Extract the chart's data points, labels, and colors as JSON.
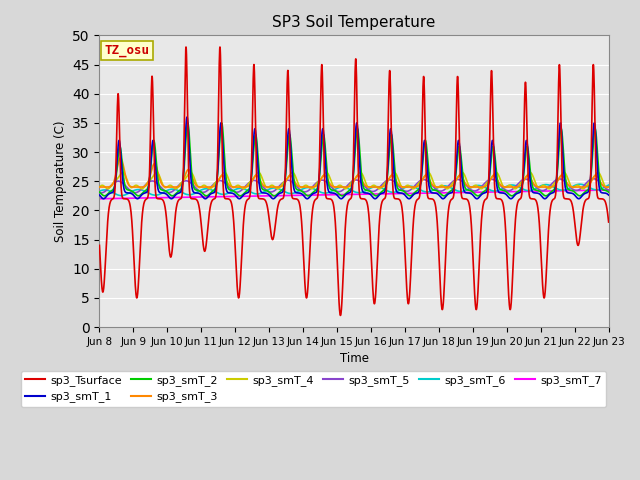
{
  "title": "SP3 Soil Temperature",
  "xlabel": "Time",
  "ylabel": "Soil Temperature (C)",
  "ylim": [
    0,
    50
  ],
  "yticks": [
    0,
    5,
    10,
    15,
    20,
    25,
    30,
    35,
    40,
    45,
    50
  ],
  "xtick_labels": [
    "Jun 8",
    "Jun 9",
    "Jun 10",
    "Jun 11",
    "Jun 12",
    "Jun 13",
    "Jun 14",
    "Jun 15",
    "Jun 16",
    "Jun 17",
    "Jun 18",
    "Jun 19",
    "Jun 20",
    "Jun 21",
    "Jun 22",
    "Jun 23"
  ],
  "fig_bg_color": "#d8d8d8",
  "plot_bg_color": "#e8e8e8",
  "annotation_text": "TZ_osu",
  "annotation_color": "#cc0000",
  "annotation_bg": "#ffffcc",
  "annotation_border": "#aaaa00",
  "series_colors": {
    "sp3_Tsurface": "#dd0000",
    "sp3_smT_1": "#0000cc",
    "sp3_smT_2": "#00cc00",
    "sp3_smT_3": "#ff8800",
    "sp3_smT_4": "#cccc00",
    "sp3_smT_5": "#8844cc",
    "sp3_smT_6": "#00cccc",
    "sp3_smT_7": "#ff00ff"
  },
  "linewidth": 1.2,
  "n_days": 15,
  "pts_per_day": 144
}
